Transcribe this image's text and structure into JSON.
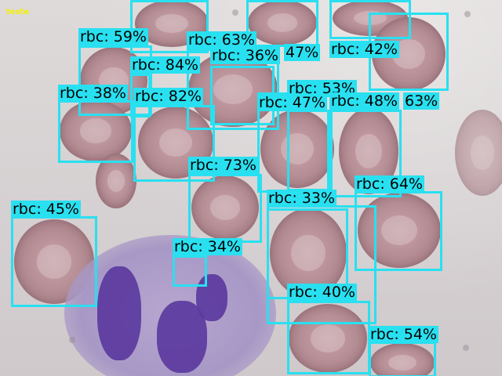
{
  "image_tag": "teste",
  "detection_color": "#29e0f0",
  "tag_color": "#f4f000",
  "detections": [
    {
      "label": "rbc: 59%"
    },
    {
      "label": "rbc: 63%"
    },
    {
      "label": "47%"
    },
    {
      "label": "rbc: 42%"
    },
    {
      "label": "rbc: 84%"
    },
    {
      "label": "rbc: 36%"
    },
    {
      "label": "rbc: 38%"
    },
    {
      "label": "rbc: 82%"
    },
    {
      "label": "rbc: 53%"
    },
    {
      "label": "rbc: 47%"
    },
    {
      "label": "rbc: 48%"
    },
    {
      "label": "63%"
    },
    {
      "label": "rbc: 73%"
    },
    {
      "label": "rbc: 64%"
    },
    {
      "label": "rbc: 33%"
    },
    {
      "label": "rbc: 45%"
    },
    {
      "label": "rbc: 34%"
    },
    {
      "label": "rbc: 40%"
    },
    {
      "label": "rbc: 54%"
    }
  ]
}
